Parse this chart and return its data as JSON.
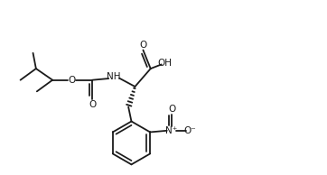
{
  "bg_color": "#ffffff",
  "line_color": "#1a1a1a",
  "lw": 1.3,
  "fig_width": 3.62,
  "fig_height": 1.94,
  "dpi": 100,
  "xlim": [
    0,
    10.5
  ],
  "ylim": [
    0,
    5.8
  ]
}
